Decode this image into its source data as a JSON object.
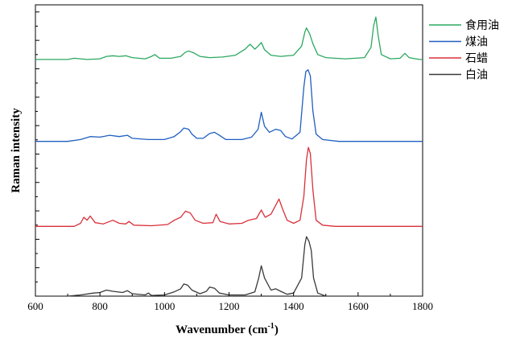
{
  "chart_data": {
    "type": "line",
    "xlabel": "Wavenumber (cm",
    "xlabel_sup": "-1",
    "xlabel_end": ")",
    "ylabel": "Raman intensity",
    "xlim": [
      600,
      1800
    ],
    "xticks": [
      "600",
      "800",
      "1000",
      "1200",
      "1400",
      "1600",
      "1800"
    ],
    "ylim": [
      0,
      4.8
    ],
    "yticks_shown": false,
    "grid": false,
    "legend_position": "top-right",
    "series": [
      {
        "name": "食用油",
        "color": "#2ca860",
        "offset": 3.9,
        "points": [
          [
            600,
            0.0
          ],
          [
            700,
            0.0
          ],
          [
            720,
            0.02
          ],
          [
            760,
            0.0
          ],
          [
            800,
            0.01
          ],
          [
            820,
            0.05
          ],
          [
            840,
            0.06
          ],
          [
            860,
            0.05
          ],
          [
            880,
            0.06
          ],
          [
            900,
            0.03
          ],
          [
            940,
            0.01
          ],
          [
            960,
            0.05
          ],
          [
            970,
            0.08
          ],
          [
            985,
            0.02
          ],
          [
            1020,
            0.02
          ],
          [
            1050,
            0.05
          ],
          [
            1065,
            0.12
          ],
          [
            1075,
            0.14
          ],
          [
            1090,
            0.11
          ],
          [
            1110,
            0.05
          ],
          [
            1140,
            0.03
          ],
          [
            1180,
            0.04
          ],
          [
            1220,
            0.07
          ],
          [
            1250,
            0.17
          ],
          [
            1265,
            0.25
          ],
          [
            1280,
            0.17
          ],
          [
            1290,
            0.22
          ],
          [
            1300,
            0.28
          ],
          [
            1310,
            0.16
          ],
          [
            1330,
            0.07
          ],
          [
            1360,
            0.05
          ],
          [
            1400,
            0.07
          ],
          [
            1425,
            0.22
          ],
          [
            1435,
            0.45
          ],
          [
            1440,
            0.52
          ],
          [
            1450,
            0.42
          ],
          [
            1460,
            0.26
          ],
          [
            1475,
            0.08
          ],
          [
            1500,
            0.03
          ],
          [
            1560,
            0.01
          ],
          [
            1620,
            0.03
          ],
          [
            1640,
            0.2
          ],
          [
            1648,
            0.55
          ],
          [
            1655,
            0.7
          ],
          [
            1662,
            0.4
          ],
          [
            1672,
            0.08
          ],
          [
            1700,
            0.01
          ],
          [
            1730,
            0.02
          ],
          [
            1745,
            0.1
          ],
          [
            1758,
            0.03
          ],
          [
            1790,
            0.0
          ],
          [
            1800,
            0.0
          ]
        ]
      },
      {
        "name": "煤油",
        "color": "#1f5fc0",
        "offset": 2.55,
        "points": [
          [
            600,
            0.0
          ],
          [
            700,
            0.0
          ],
          [
            740,
            0.03
          ],
          [
            770,
            0.08
          ],
          [
            800,
            0.07
          ],
          [
            830,
            0.1
          ],
          [
            860,
            0.08
          ],
          [
            885,
            0.1
          ],
          [
            900,
            0.05
          ],
          [
            950,
            0.03
          ],
          [
            1000,
            0.03
          ],
          [
            1030,
            0.08
          ],
          [
            1050,
            0.16
          ],
          [
            1060,
            0.22
          ],
          [
            1075,
            0.2
          ],
          [
            1085,
            0.12
          ],
          [
            1100,
            0.05
          ],
          [
            1120,
            0.05
          ],
          [
            1140,
            0.13
          ],
          [
            1155,
            0.15
          ],
          [
            1170,
            0.1
          ],
          [
            1190,
            0.03
          ],
          [
            1240,
            0.03
          ],
          [
            1270,
            0.07
          ],
          [
            1290,
            0.2
          ],
          [
            1300,
            0.48
          ],
          [
            1310,
            0.25
          ],
          [
            1325,
            0.15
          ],
          [
            1345,
            0.2
          ],
          [
            1360,
            0.18
          ],
          [
            1375,
            0.08
          ],
          [
            1395,
            0.04
          ],
          [
            1420,
            0.15
          ],
          [
            1432,
            0.9
          ],
          [
            1438,
            1.15
          ],
          [
            1445,
            1.18
          ],
          [
            1452,
            1.08
          ],
          [
            1460,
            0.5
          ],
          [
            1470,
            0.12
          ],
          [
            1490,
            0.03
          ],
          [
            1540,
            0.0
          ],
          [
            1800,
            0.0
          ]
        ]
      },
      {
        "name": "石蜡",
        "color": "#d9303a",
        "offset": 1.15,
        "points": [
          [
            600,
            0.0
          ],
          [
            720,
            0.0
          ],
          [
            740,
            0.05
          ],
          [
            750,
            0.15
          ],
          [
            760,
            0.1
          ],
          [
            770,
            0.17
          ],
          [
            785,
            0.06
          ],
          [
            810,
            0.04
          ],
          [
            840,
            0.1
          ],
          [
            860,
            0.05
          ],
          [
            880,
            0.04
          ],
          [
            890,
            0.08
          ],
          [
            905,
            0.02
          ],
          [
            960,
            0.01
          ],
          [
            1010,
            0.03
          ],
          [
            1030,
            0.1
          ],
          [
            1050,
            0.15
          ],
          [
            1065,
            0.25
          ],
          [
            1080,
            0.22
          ],
          [
            1095,
            0.1
          ],
          [
            1120,
            0.05
          ],
          [
            1150,
            0.06
          ],
          [
            1160,
            0.2
          ],
          [
            1172,
            0.08
          ],
          [
            1200,
            0.04
          ],
          [
            1240,
            0.05
          ],
          [
            1260,
            0.1
          ],
          [
            1285,
            0.13
          ],
          [
            1300,
            0.27
          ],
          [
            1312,
            0.15
          ],
          [
            1330,
            0.2
          ],
          [
            1345,
            0.35
          ],
          [
            1355,
            0.45
          ],
          [
            1365,
            0.3
          ],
          [
            1380,
            0.1
          ],
          [
            1400,
            0.05
          ],
          [
            1420,
            0.1
          ],
          [
            1432,
            0.5
          ],
          [
            1440,
            1.1
          ],
          [
            1446,
            1.3
          ],
          [
            1452,
            1.2
          ],
          [
            1460,
            0.6
          ],
          [
            1470,
            0.1
          ],
          [
            1490,
            0.02
          ],
          [
            1530,
            0.0
          ],
          [
            1800,
            0.0
          ]
        ]
      },
      {
        "name": "白油",
        "color": "#3a3a3a",
        "offset": 0.0,
        "points": [
          [
            600,
            0.0
          ],
          [
            700,
            0.0
          ],
          [
            740,
            0.02
          ],
          [
            780,
            0.05
          ],
          [
            800,
            0.06
          ],
          [
            820,
            0.1
          ],
          [
            840,
            0.08
          ],
          [
            870,
            0.06
          ],
          [
            885,
            0.09
          ],
          [
            900,
            0.04
          ],
          [
            940,
            0.02
          ],
          [
            950,
            0.05
          ],
          [
            960,
            0.01
          ],
          [
            1000,
            0.02
          ],
          [
            1030,
            0.07
          ],
          [
            1050,
            0.12
          ],
          [
            1060,
            0.2
          ],
          [
            1072,
            0.18
          ],
          [
            1085,
            0.1
          ],
          [
            1110,
            0.04
          ],
          [
            1130,
            0.08
          ],
          [
            1140,
            0.15
          ],
          [
            1155,
            0.13
          ],
          [
            1170,
            0.05
          ],
          [
            1200,
            0.02
          ],
          [
            1250,
            0.02
          ],
          [
            1280,
            0.07
          ],
          [
            1292,
            0.3
          ],
          [
            1300,
            0.5
          ],
          [
            1310,
            0.3
          ],
          [
            1330,
            0.1
          ],
          [
            1345,
            0.12
          ],
          [
            1360,
            0.08
          ],
          [
            1380,
            0.03
          ],
          [
            1400,
            0.05
          ],
          [
            1425,
            0.3
          ],
          [
            1435,
            0.85
          ],
          [
            1440,
            0.98
          ],
          [
            1448,
            0.9
          ],
          [
            1455,
            0.75
          ],
          [
            1462,
            0.3
          ],
          [
            1475,
            0.05
          ],
          [
            1500,
            0.0
          ],
          [
            1800,
            0.0
          ]
        ]
      }
    ]
  }
}
